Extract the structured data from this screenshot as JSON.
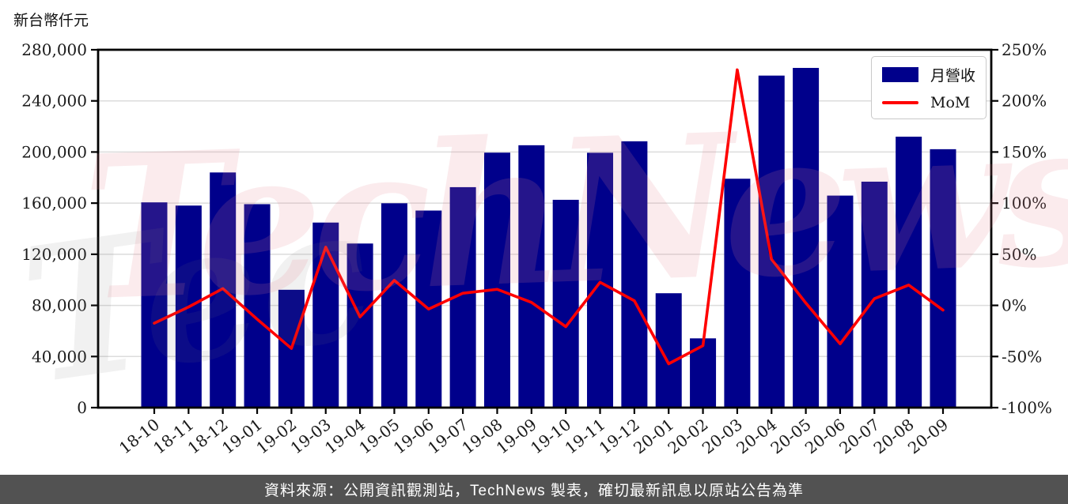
{
  "chart_data": {
    "type": "bar+line",
    "title": "",
    "ylabel": "新台幣仟元",
    "categories": [
      "18-10",
      "18-11",
      "18-12",
      "19-01",
      "19-02",
      "19-03",
      "19-04",
      "19-05",
      "19-06",
      "19-07",
      "19-08",
      "19-09",
      "19-10",
      "19-11",
      "19-12",
      "20-01",
      "20-02",
      "20-03",
      "20-04",
      "20-05",
      "20-06",
      "20-07",
      "20-08",
      "20-09"
    ],
    "series": [
      {
        "name": "月營收",
        "type": "bar",
        "axis": "left",
        "color": "#00008B",
        "values": [
          160600,
          158100,
          184000,
          159200,
          92200,
          144800,
          128400,
          159900,
          154200,
          172500,
          199500,
          205300,
          162600,
          199400,
          208400,
          89500,
          54200,
          179100,
          259800,
          265800,
          165900,
          176800,
          212000,
          202200
        ]
      },
      {
        "name": "MoM",
        "type": "line",
        "axis": "right",
        "color": "#FF0000",
        "values_pct": [
          -17.4,
          -1.6,
          16.4,
          -13.5,
          -42.1,
          57.0,
          -11.3,
          24.5,
          -3.6,
          11.9,
          15.7,
          2.9,
          -20.8,
          22.6,
          4.5,
          -57.1,
          -39.4,
          230.4,
          45.1,
          2.3,
          -37.6,
          6.6,
          19.9,
          -4.6
        ]
      }
    ],
    "left_axis": {
      "min": 0,
      "max": 280000,
      "tick_step": 40000,
      "tick_labels": [
        "0",
        "40,000",
        "80,000",
        "120,000",
        "160,000",
        "200,000",
        "240,000",
        "280,000"
      ]
    },
    "right_axis": {
      "min": -100,
      "max": 250,
      "tick_step": 50,
      "tick_labels": [
        "-100%",
        "-50%",
        "0%",
        "50%",
        "100%",
        "150%",
        "200%",
        "250%"
      ]
    },
    "legend_position": "upper right",
    "grid": true,
    "grid_color": "#dcdcdc"
  },
  "watermark": {
    "text": "TechNews"
  },
  "footer": {
    "text": "資料來源：公開資訊觀測站，TechNews 製表，確切最新訊息以原站公告為準"
  }
}
